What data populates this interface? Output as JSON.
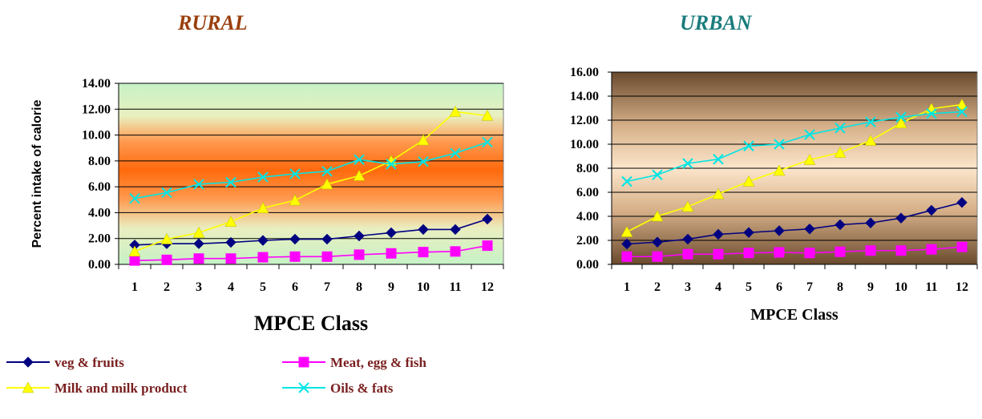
{
  "chart_data": [
    {
      "type": "line",
      "title": "RURAL",
      "xlabel": "MPCE Class",
      "ylabel": "Percent  intake of calorie",
      "categories": [
        "1",
        "2",
        "3",
        "4",
        "5",
        "6",
        "7",
        "8",
        "9",
        "10",
        "11",
        "12"
      ],
      "ylim": [
        0,
        14
      ],
      "ytick_labels": [
        "0.00",
        "2.00",
        "4.00",
        "6.00",
        "8.00",
        "10.00",
        "12.00",
        "14.00"
      ],
      "grid": true,
      "series": [
        {
          "name": "veg & fruits",
          "color": "#000080",
          "marker": "diamond",
          "values": [
            1.5,
            1.6,
            1.6,
            1.7,
            1.85,
            1.95,
            1.95,
            2.2,
            2.45,
            2.7,
            2.7,
            3.5
          ]
        },
        {
          "name": "Meat, egg & fish",
          "color": "#ff00ff",
          "marker": "square",
          "values": [
            0.3,
            0.35,
            0.45,
            0.45,
            0.55,
            0.6,
            0.6,
            0.75,
            0.85,
            0.95,
            1.0,
            1.45
          ]
        },
        {
          "name": "Milk and milk product",
          "color": "#ffff00",
          "marker": "triangle",
          "values": [
            1.0,
            1.95,
            2.45,
            3.3,
            4.35,
            4.95,
            6.2,
            6.85,
            8.0,
            9.6,
            11.8,
            11.5
          ]
        },
        {
          "name": "Oils & fats",
          "color": "#00e5e5",
          "marker": "x",
          "values": [
            5.1,
            5.55,
            6.2,
            6.35,
            6.75,
            7.0,
            7.2,
            8.1,
            7.75,
            7.95,
            8.6,
            9.45
          ]
        }
      ]
    },
    {
      "type": "line",
      "title": "URBAN",
      "xlabel": "MPCE Class",
      "ylabel": "",
      "categories": [
        "1",
        "2",
        "3",
        "4",
        "5",
        "6",
        "7",
        "8",
        "9",
        "10",
        "11",
        "12"
      ],
      "ylim": [
        0,
        16
      ],
      "ytick_labels": [
        "0.00",
        "2.00",
        "4.00",
        "6.00",
        "8.00",
        "10.00",
        "12.00",
        "14.00",
        "16.00"
      ],
      "grid": true,
      "series": [
        {
          "name": "veg & fruits",
          "color": "#000080",
          "marker": "diamond",
          "values": [
            1.7,
            1.85,
            2.1,
            2.5,
            2.65,
            2.8,
            2.95,
            3.3,
            3.45,
            3.85,
            4.5,
            5.15
          ]
        },
        {
          "name": "Meat, egg & fish",
          "color": "#ff00ff",
          "marker": "square",
          "values": [
            0.65,
            0.65,
            0.85,
            0.85,
            0.95,
            1.0,
            0.95,
            1.05,
            1.15,
            1.15,
            1.25,
            1.45
          ]
        },
        {
          "name": "Milk and milk product",
          "color": "#ffff00",
          "marker": "triangle",
          "values": [
            2.7,
            4.0,
            4.8,
            5.85,
            6.9,
            7.8,
            8.7,
            9.3,
            10.3,
            11.75,
            12.95,
            13.3
          ]
        },
        {
          "name": "Oils & fats",
          "color": "#00e5e5",
          "marker": "x",
          "values": [
            6.9,
            7.45,
            8.4,
            8.75,
            9.85,
            10.0,
            10.8,
            11.35,
            11.85,
            12.25,
            12.55,
            12.7
          ]
        }
      ]
    }
  ],
  "legend": [
    {
      "label": "veg & fruits",
      "color": "#000080",
      "marker": "diamond"
    },
    {
      "label": "Meat, egg & fish",
      "color": "#ff00ff",
      "marker": "square"
    },
    {
      "label": "Milk and milk product",
      "color": "#ffff00",
      "marker": "triangle"
    },
    {
      "label": "Oils & fats",
      "color": "#00e5e5",
      "marker": "x"
    }
  ]
}
